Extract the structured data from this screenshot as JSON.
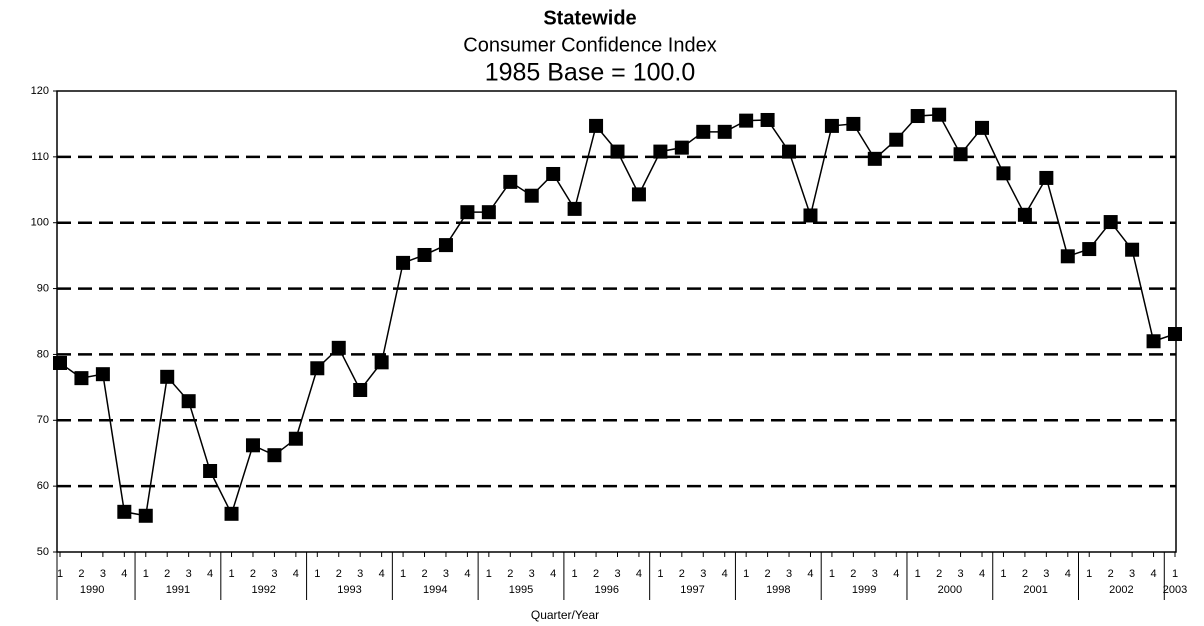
{
  "chart_data": {
    "type": "line",
    "title": [
      "Statewide",
      "Consumer Confidence Index",
      "1985 Base = 100.0"
    ],
    "x_label": "Quarter/Year",
    "categories": [
      "1",
      "2",
      "3",
      "4",
      "1",
      "2",
      "3",
      "4",
      "1",
      "2",
      "3",
      "4",
      "1",
      "2",
      "3",
      "4",
      "1",
      "2",
      "3",
      "4",
      "1",
      "2",
      "3",
      "4",
      "1",
      "2",
      "3",
      "4",
      "1",
      "2",
      "3",
      "4",
      "1",
      "2",
      "3",
      "4",
      "1",
      "2",
      "3",
      "4",
      "1",
      "2",
      "3",
      "4",
      "1",
      "2",
      "3",
      "4",
      "1",
      "2",
      "3",
      "4",
      "1"
    ],
    "year_groups": [
      "1990",
      "1991",
      "1992",
      "1993",
      "1994",
      "1995",
      "1996",
      "1997",
      "1998",
      "1999",
      "2000",
      "2001",
      "2002",
      "2003"
    ],
    "series": [
      {
        "name": "Consumer Confidence Index",
        "color": "#000000",
        "values": [
          78.7,
          76.4,
          77.0,
          56.1,
          55.5,
          76.6,
          72.9,
          62.3,
          55.8,
          66.2,
          64.7,
          67.2,
          77.9,
          81.0,
          74.6,
          78.8,
          93.9,
          95.1,
          96.6,
          101.6,
          101.6,
          106.2,
          104.1,
          107.4,
          102.1,
          114.7,
          110.8,
          104.3,
          110.8,
          111.4,
          113.8,
          113.8,
          115.5,
          115.6,
          110.8,
          101.1,
          114.7,
          115.0,
          109.7,
          112.6,
          116.2,
          116.4,
          110.4,
          114.4,
          107.5,
          101.2,
          106.8,
          94.9,
          96.0,
          100.1,
          95.9,
          82.0,
          83.1
        ]
      }
    ],
    "ylim": [
      50,
      120
    ],
    "yticks": [
      50,
      60,
      70,
      80,
      90,
      100,
      110,
      120
    ],
    "grid": true
  }
}
